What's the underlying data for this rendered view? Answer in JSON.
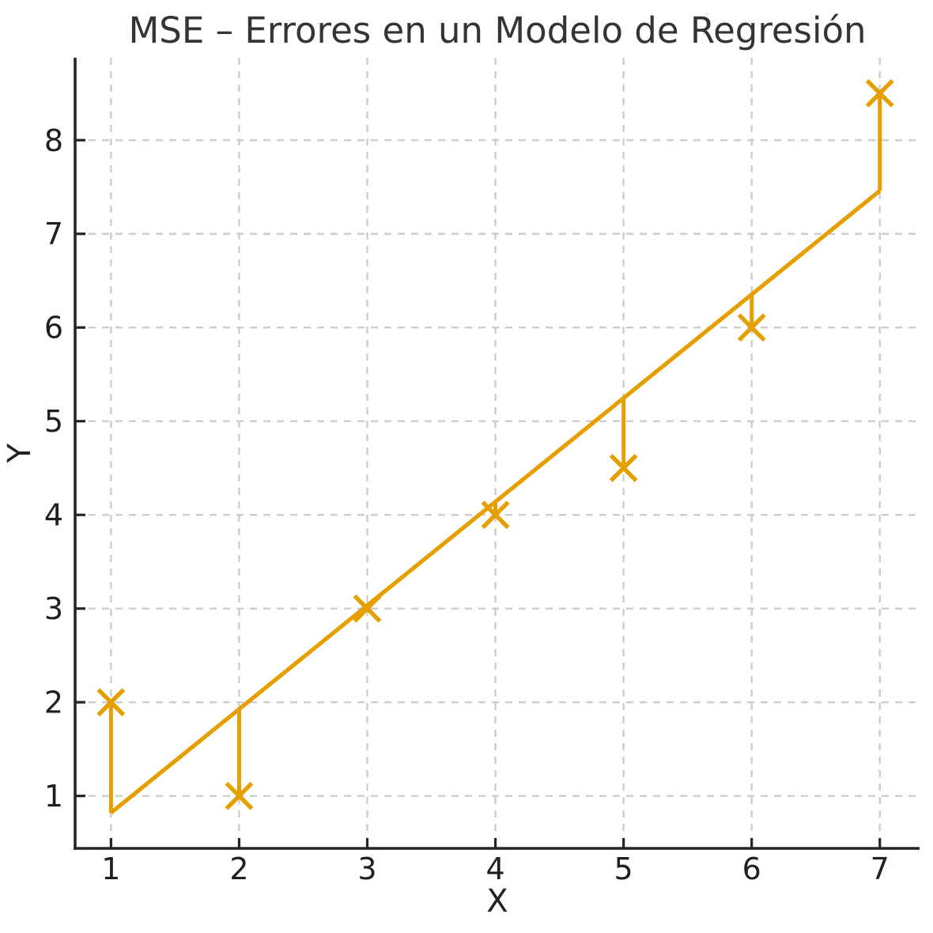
{
  "chart_data": {
    "type": "scatter",
    "title": "MSE – Errores en un Modelo de Regresión",
    "xlabel": "X",
    "ylabel": "Y",
    "points": {
      "x": [
        1,
        2,
        3,
        4,
        5,
        6,
        7
      ],
      "y": [
        2,
        1,
        3,
        4,
        4.5,
        6,
        8.5
      ]
    },
    "fitted_values": [
      0.82,
      1.93,
      3.04,
      4.14,
      5.25,
      6.36,
      7.46
    ],
    "regression_line": {
      "x": [
        1,
        7
      ],
      "y": [
        0.82,
        7.46
      ]
    },
    "error_segments_from_points_to_line": true,
    "marker": "x",
    "xticks": [
      1,
      2,
      3,
      4,
      5,
      6,
      7
    ],
    "yticks": [
      1,
      2,
      3,
      4,
      5,
      6,
      7,
      8
    ],
    "xlim": [
      0.72,
      7.31
    ],
    "ylim": [
      0.44,
      8.88
    ],
    "grid": {
      "on": true,
      "style": "dashed"
    },
    "legend": "none",
    "colors": {
      "series": "#E69F00",
      "grid": "#cdcdcd",
      "axis": "#262626",
      "text": "#222222"
    }
  }
}
